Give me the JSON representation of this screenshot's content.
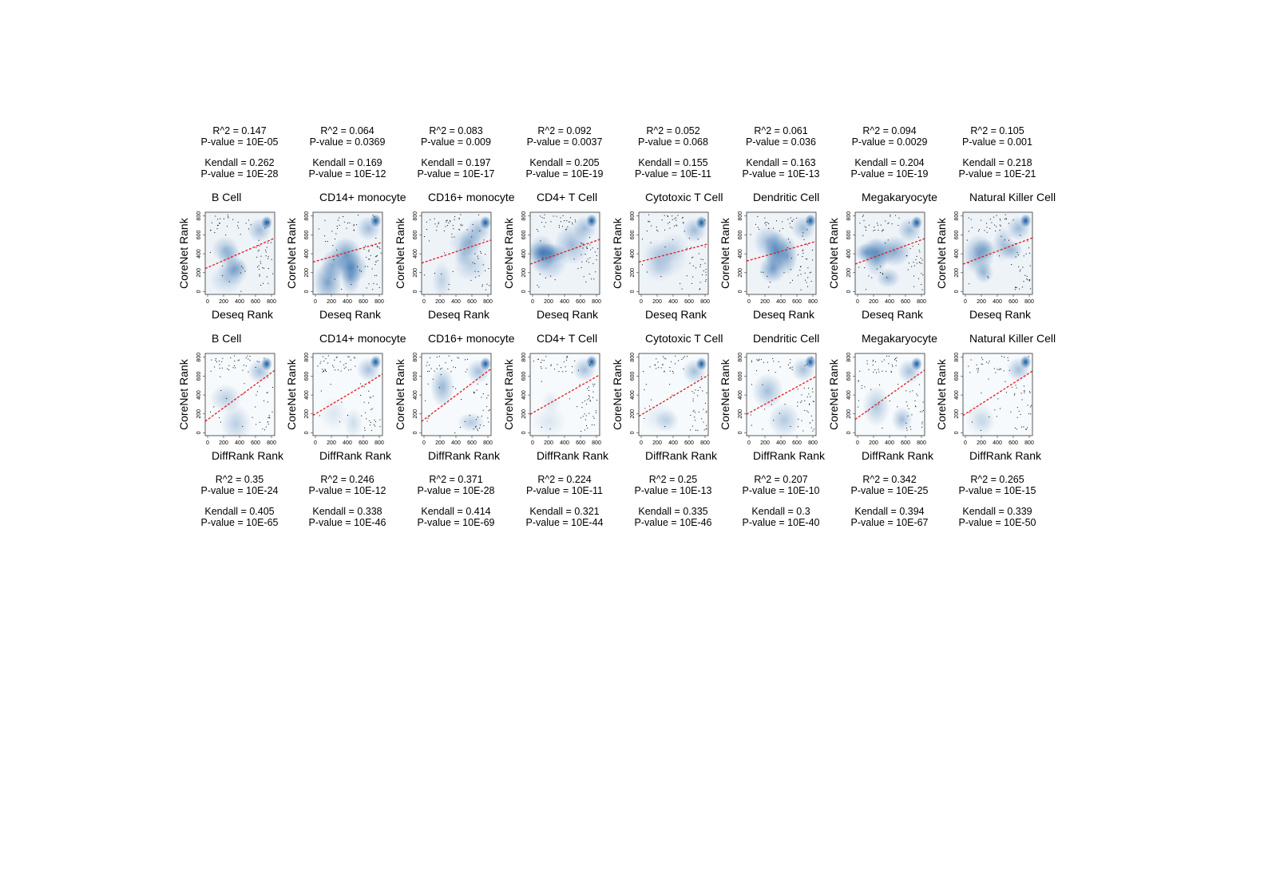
{
  "chart_data": {
    "type": "scatter",
    "axis": {
      "ylabel": "CoreNet Rank",
      "xticks": [
        0,
        200,
        400,
        600,
        800
      ],
      "yticks": [
        0,
        200,
        400,
        600,
        800
      ],
      "xlim": [
        -30,
        840
      ],
      "ylim": [
        -30,
        840
      ]
    },
    "colors": {
      "density": "#08519c",
      "fit_line": "#e31a1c",
      "points": "#000000"
    },
    "rows": [
      {
        "xlabel": "Deseq Rank",
        "panels": [
          {
            "title": "B Cell",
            "r2": "R^2 = 0.147",
            "r2_p": "P-value = 10E-05",
            "kendall": "Kendall = 0.262",
            "kendall_p": "P-value = 10E-28",
            "fit": [
              255,
              0.37
            ]
          },
          {
            "title": "CD14+ monocyte",
            "r2": "R^2 = 0.064",
            "r2_p": "P-value = 0.0369",
            "kendall": "Kendall = 0.169",
            "kendall_p": "P-value = 10E-12",
            "fit": [
              320,
              0.24
            ]
          },
          {
            "title": "CD16+ monocyte",
            "r2": "R^2 = 0.083",
            "r2_p": "P-value = 0.009",
            "kendall": "Kendall = 0.197",
            "kendall_p": "P-value = 10E-17",
            "fit": [
              310,
              0.28
            ]
          },
          {
            "title": "CD4+ T Cell",
            "r2": "R^2 = 0.092",
            "r2_p": "P-value = 0.0037",
            "kendall": "Kendall = 0.205",
            "kendall_p": "P-value = 10E-19",
            "fit": [
              300,
              0.3
            ]
          },
          {
            "title": "Cytotoxic T Cell",
            "r2": "R^2 = 0.052",
            "r2_p": "P-value = 0.068",
            "kendall": "Kendall = 0.155",
            "kendall_p": "P-value = 10E-11",
            "fit": [
              320,
              0.22
            ]
          },
          {
            "title": "Dendritic Cell",
            "r2": "R^2 = 0.061",
            "r2_p": "P-value = 0.036",
            "kendall": "Kendall = 0.163",
            "kendall_p": "P-value = 10E-13",
            "fit": [
              330,
              0.24
            ]
          },
          {
            "title": "Megakaryocyte",
            "r2": "R^2 = 0.094",
            "r2_p": "P-value = 0.0029",
            "kendall": "Kendall = 0.204",
            "kendall_p": "P-value = 10E-19",
            "fit": [
              300,
              0.31
            ]
          },
          {
            "title": "Natural Killer Cell",
            "r2": "R^2 = 0.105",
            "r2_p": "P-value = 0.001",
            "kendall": "Kendall = 0.218",
            "kendall_p": "P-value = 10E-21",
            "fit": [
              300,
              0.32
            ]
          }
        ]
      },
      {
        "xlabel": "DiffRank Rank",
        "panels": [
          {
            "title": "B Cell",
            "r2": "R^2 = 0.35",
            "r2_p": "P-value = 10E-24",
            "kendall": "Kendall = 0.405",
            "kendall_p": "P-value = 10E-65",
            "fit": [
              140,
              0.62
            ]
          },
          {
            "title": "CD14+ monocyte",
            "r2": "R^2 = 0.246",
            "r2_p": "P-value = 10E-12",
            "kendall": "Kendall = 0.338",
            "kendall_p": "P-value = 10E-46",
            "fit": [
              200,
              0.5
            ]
          },
          {
            "title": "CD16+ monocyte",
            "r2": "R^2 = 0.371",
            "r2_p": "P-value = 10E-28",
            "kendall": "Kendall = 0.414",
            "kendall_p": "P-value = 10E-69",
            "fit": [
              140,
              0.64
            ]
          },
          {
            "title": "CD4+ T Cell",
            "r2": "R^2 = 0.224",
            "r2_p": "P-value = 10E-11",
            "kendall": "Kendall = 0.321",
            "kendall_p": "P-value = 10E-44",
            "fit": [
              210,
              0.48
            ]
          },
          {
            "title": "Cytotoxic T Cell",
            "r2": "R^2 = 0.25",
            "r2_p": "P-value = 10E-13",
            "kendall": "Kendall = 0.335",
            "kendall_p": "P-value = 10E-46",
            "fit": [
              190,
              0.5
            ]
          },
          {
            "title": "Dendritic Cell",
            "r2": "R^2 = 0.207",
            "r2_p": "P-value = 10E-10",
            "kendall": "Kendall = 0.3",
            "kendall_p": "P-value = 10E-40",
            "fit": [
              210,
              0.46
            ]
          },
          {
            "title": "Megakaryocyte",
            "r2": "R^2 = 0.342",
            "r2_p": "P-value = 10E-25",
            "kendall": "Kendall = 0.394",
            "kendall_p": "P-value = 10E-67",
            "fit": [
              160,
              0.6
            ]
          },
          {
            "title": "Natural Killer Cell",
            "r2": "R^2 = 0.265",
            "r2_p": "P-value = 10E-15",
            "kendall": "Kendall = 0.339",
            "kendall_p": "P-value = 10E-50",
            "fit": [
              200,
              0.54
            ]
          }
        ]
      }
    ]
  }
}
